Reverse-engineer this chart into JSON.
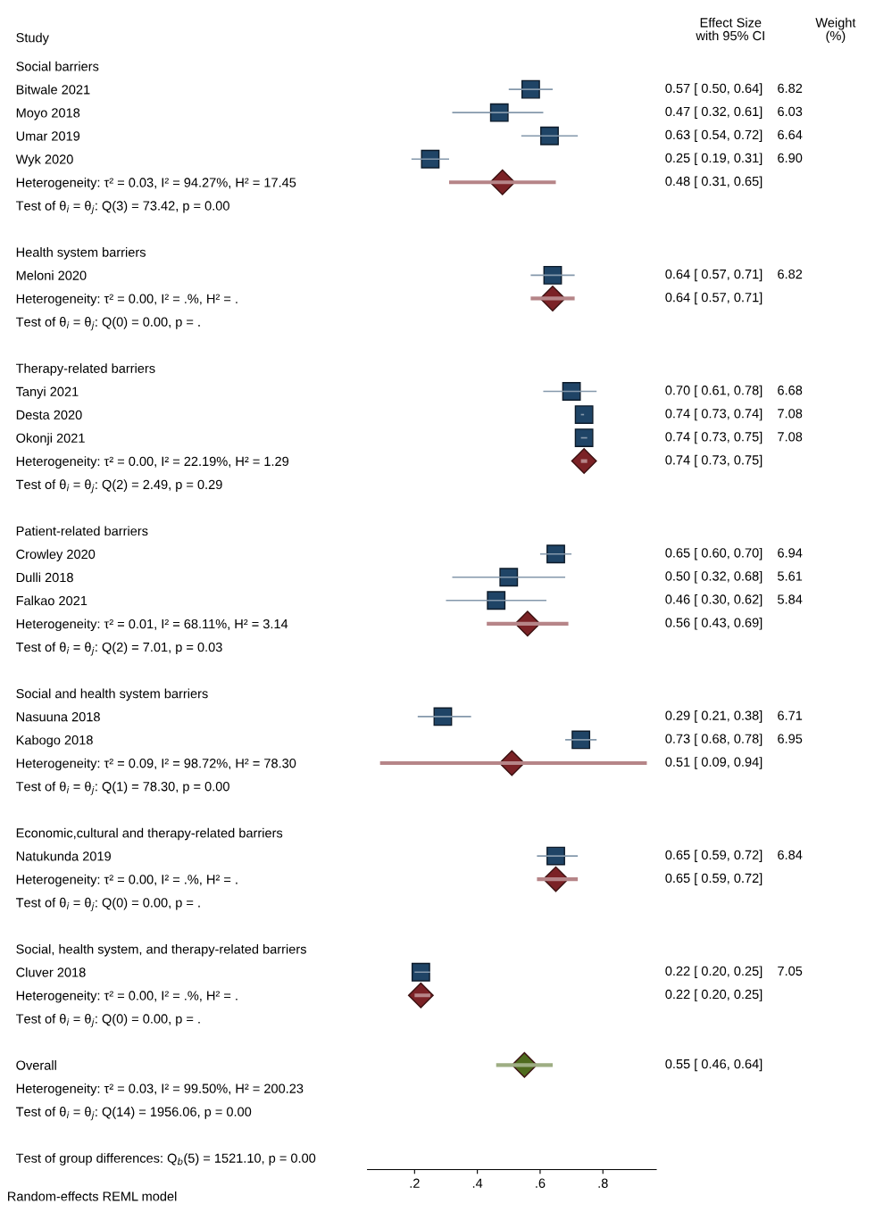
{
  "chart_data": {
    "type": "scatter",
    "orientation": "horizontal",
    "ylabel": "Study",
    "categories": [
      "Social barriers",
      "Bitwale 2021",
      "Moyo 2018",
      "Umar 2019",
      "Wyk 2020",
      "Heterogeneity: τ² = 0.03, I² = 94.27%, H² = 17.45",
      "Test of θ$_{i}$ = θ$_{j}$: Q(3) = 73.42, p = 0.00",
      null,
      "Health system barriers",
      "Meloni 2020",
      "Heterogeneity: τ² = 0.00, I² = .%, H² = .",
      "Test of θ$_{i}$ = θ$_{j}$: Q(0) = 0.00, p = .",
      null,
      "Therapy-related barriers",
      "Tanyi 2021",
      "Desta 2020",
      "Okonji 2021",
      "Heterogeneity: τ² = 0.00, I² = 22.19%, H² = 1.29",
      "Test of θ$_{i}$ = θ$_{j}$: Q(2) = 2.49, p = 0.29",
      null,
      "Patient-related barriers",
      "Crowley 2020",
      "Dulli 2018",
      "Falkao 2021",
      "Heterogeneity: τ² = 0.01, I² = 68.11%, H² = 3.14",
      "Test of θ$_{i}$ = θ$_{j}$: Q(2) = 7.01, p = 0.03",
      null,
      "Social and health system barriers",
      "Nasuuna 2018",
      "Kabogo 2018",
      "Heterogeneity: τ² = 0.09, I² = 98.72%, H² = 78.30",
      "Test of θ$_{i}$ = θ$_{j}$: Q(1) = 78.30, p = 0.00",
      null,
      "Economic,cultural and therapy-related barriers",
      "Natukunda 2019",
      "Heterogeneity: τ² = 0.00, I² = .%, H² = .",
      "Test of θ$_{i}$ = θ$_{j}$: Q(0) = 0.00, p = .",
      null,
      "Social, health system, and therapy-related barriers",
      "Cluver 2018",
      "Heterogeneity: τ² = 0.00, I² = .%, H² = .",
      "Test of θ$_{i}$ = θ$_{j}$: Q(0) = 0.00, p = .",
      null,
      "Overall",
      "Heterogeneity: τ² = 0.03, I² = 99.50%, H² = 200.23",
      "Test of θ$_{i}$ = θ$_{j}$: Q(14) = 1956.06, p = 0.00",
      null,
      "Test of group differences: Q$_{b}$(5) = 1521.10, p = 0.00"
    ],
    "series": [
      {
        "color": "#1f4466",
        "marker": "square",
        "values": [
          null,
          0.57,
          0.47,
          0.63,
          0.25,
          null,
          null,
          null,
          null,
          0.64,
          null,
          null,
          null,
          null,
          0.7,
          0.74,
          0.74,
          null,
          null,
          null,
          null,
          0.65,
          0.5,
          0.46,
          null,
          null,
          null,
          null,
          0.29,
          0.73,
          null,
          null,
          null,
          null,
          0.65,
          null,
          null,
          null,
          null,
          0.22,
          null,
          null,
          null,
          null,
          null,
          null,
          null,
          null
        ],
        "errors": [
          null,
          [
            0.5,
            0.64
          ],
          [
            0.32,
            0.61
          ],
          [
            0.54,
            0.72
          ],
          [
            0.19,
            0.31
          ],
          null,
          null,
          null,
          null,
          [
            0.57,
            0.71
          ],
          null,
          null,
          null,
          null,
          [
            0.61,
            0.78
          ],
          [
            0.73,
            0.74
          ],
          [
            0.73,
            0.75
          ],
          null,
          null,
          null,
          null,
          [
            0.6,
            0.7
          ],
          [
            0.32,
            0.68
          ],
          [
            0.3,
            0.62
          ],
          null,
          null,
          null,
          null,
          [
            0.21,
            0.38
          ],
          [
            0.68,
            0.78
          ],
          null,
          null,
          null,
          null,
          [
            0.59,
            0.72
          ],
          null,
          null,
          null,
          null,
          [
            0.2,
            0.25
          ],
          null,
          null,
          null,
          null,
          null,
          null,
          null,
          null
        ],
        "value_labels": [
          null,
          "0.57 [ 0.50, 0.64]    6.82",
          "0.47 [ 0.32, 0.61]    6.03",
          "0.63 [ 0.54, 0.72]    6.64",
          "0.25 [ 0.19, 0.31]    6.90",
          null,
          null,
          null,
          null,
          "0.64 [ 0.57, 0.71]    6.82",
          null,
          null,
          null,
          null,
          "0.70 [ 0.61, 0.78]    6.68",
          "0.74 [ 0.73, 0.74]    7.08",
          "0.74 [ 0.73, 0.75]    7.08",
          null,
          null,
          null,
          null,
          "0.65 [ 0.60, 0.70]    6.94",
          "0.50 [ 0.32, 0.68]    5.61",
          "0.46 [ 0.30, 0.62]    5.84",
          null,
          null,
          null,
          null,
          "0.29 [ 0.21, 0.38]    6.71",
          "0.73 [ 0.68, 0.78]    6.95",
          null,
          null,
          null,
          null,
          "0.65 [ 0.59, 0.72]    6.84",
          null,
          null,
          null,
          null,
          "0.22 [ 0.20, 0.25]    7.05",
          null,
          null,
          null,
          null,
          null,
          null,
          null,
          null
        ]
      },
      {
        "marker": "diamond",
        "colors": [
          null,
          null,
          null,
          null,
          null,
          "#7b2226",
          null,
          null,
          null,
          null,
          "#7b2226",
          null,
          null,
          null,
          null,
          null,
          null,
          "#7b2226",
          null,
          null,
          null,
          null,
          null,
          null,
          "#7b2226",
          null,
          null,
          null,
          null,
          null,
          "#7b2226",
          null,
          null,
          null,
          null,
          "#7b2226",
          null,
          null,
          null,
          null,
          "#7b2226",
          null,
          null,
          "#4f6b1e",
          null,
          null,
          null,
          null
        ],
        "values": [
          null,
          null,
          null,
          null,
          null,
          0.48,
          null,
          null,
          null,
          null,
          0.64,
          null,
          null,
          null,
          null,
          null,
          null,
          0.74,
          null,
          null,
          null,
          null,
          null,
          null,
          0.56,
          null,
          null,
          null,
          null,
          null,
          0.51,
          null,
          null,
          null,
          null,
          0.65,
          null,
          null,
          null,
          null,
          0.22,
          null,
          null,
          0.55,
          null,
          null,
          null,
          null
        ],
        "errors": [
          null,
          null,
          null,
          null,
          null,
          [
            0.31,
            0.65
          ],
          null,
          null,
          null,
          null,
          [
            0.57,
            0.71
          ],
          null,
          null,
          null,
          null,
          null,
          null,
          [
            0.73,
            0.75
          ],
          null,
          null,
          null,
          null,
          null,
          null,
          [
            0.43,
            0.69
          ],
          null,
          null,
          null,
          null,
          null,
          [
            0.09,
            0.94
          ],
          null,
          null,
          null,
          null,
          [
            0.59,
            0.72
          ],
          null,
          null,
          null,
          null,
          [
            0.2,
            0.25
          ],
          null,
          null,
          [
            0.46,
            0.64
          ],
          null,
          null,
          null,
          null
        ],
        "value_labels": [
          null,
          null,
          null,
          null,
          null,
          "0.48 [ 0.31, 0.65]",
          null,
          null,
          null,
          null,
          "0.64 [ 0.57, 0.71]",
          null,
          null,
          null,
          null,
          null,
          null,
          "0.74 [ 0.73, 0.75]",
          null,
          null,
          null,
          null,
          null,
          null,
          "0.56 [ 0.43, 0.69]",
          null,
          null,
          null,
          null,
          null,
          "0.51 [ 0.09, 0.94]",
          null,
          null,
          null,
          null,
          "0.65 [ 0.59, 0.72]",
          null,
          null,
          null,
          null,
          "0.22 [ 0.20, 0.25]",
          null,
          null,
          "0.55 [ 0.46, 0.64]",
          null,
          null,
          null,
          null
        ]
      }
    ],
    "xlim": [
      0.05,
      0.97
    ],
    "xticks": [
      {
        "value": 0.2,
        "label": ".2"
      },
      {
        "value": 0.4,
        "label": ".4"
      },
      {
        "value": 0.6,
        "label": ".6"
      },
      {
        "value": 0.8,
        "label": ".8"
      }
    ],
    "annotations": [
      "Effect Size\nwith 95% CI",
      "Weight\n(%)",
      "Random-effects REML model"
    ],
    "grid": false,
    "legend": false
  }
}
